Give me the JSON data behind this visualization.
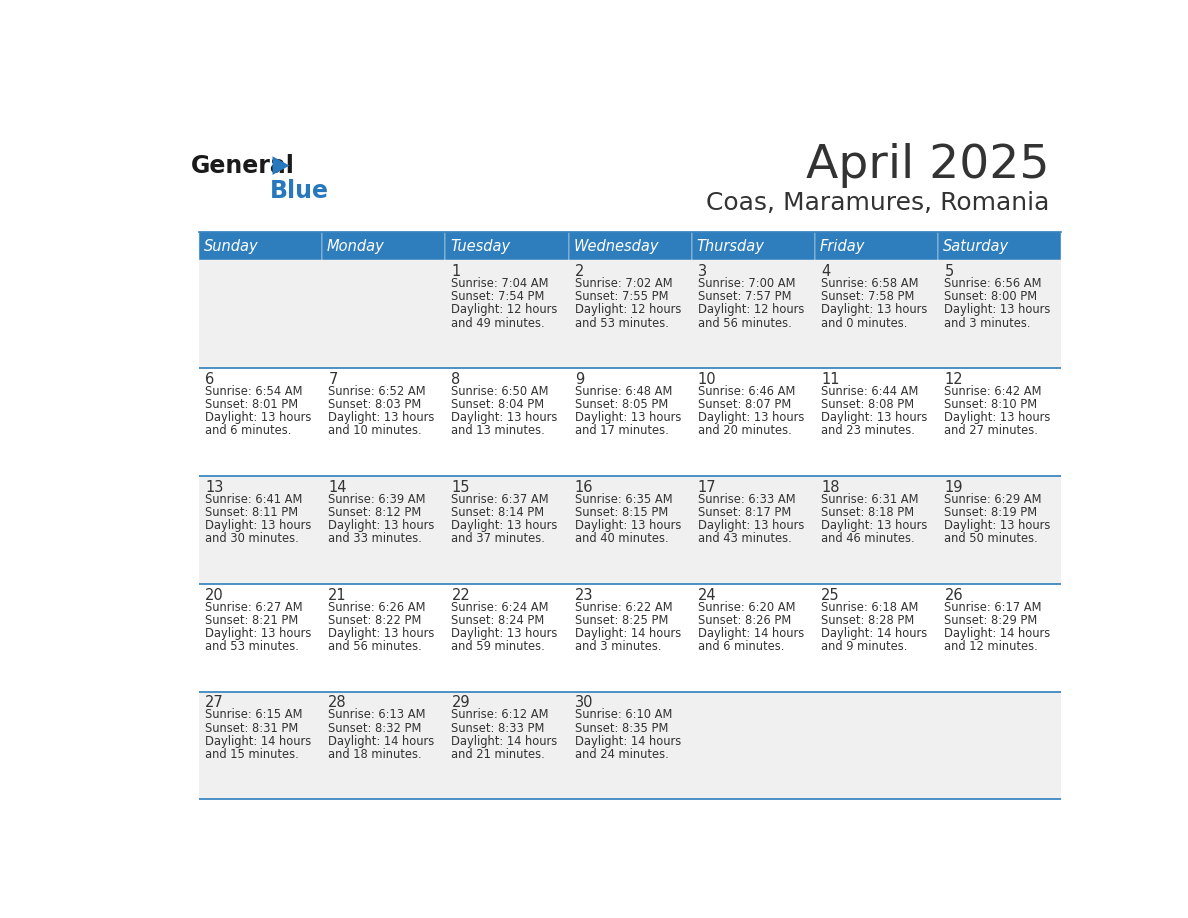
{
  "title": "April 2025",
  "subtitle": "Coas, Maramures, Romania",
  "days_of_week": [
    "Sunday",
    "Monday",
    "Tuesday",
    "Wednesday",
    "Thursday",
    "Friday",
    "Saturday"
  ],
  "header_bg": "#2E7EBD",
  "header_text": "#FFFFFF",
  "row_bg_even": "#F0F0F0",
  "row_bg_odd": "#FFFFFF",
  "row_divider": "#2E7EBD",
  "text_color": "#333333",
  "logo_general_color": "#1a1a1a",
  "logo_blue_color": "#2878BE",
  "cal_data": [
    [
      "",
      "",
      "1",
      "2",
      "3",
      "4",
      "5"
    ],
    [
      "6",
      "7",
      "8",
      "9",
      "10",
      "11",
      "12"
    ],
    [
      "13",
      "14",
      "15",
      "16",
      "17",
      "18",
      "19"
    ],
    [
      "20",
      "21",
      "22",
      "23",
      "24",
      "25",
      "26"
    ],
    [
      "27",
      "28",
      "29",
      "30",
      "",
      "",
      ""
    ]
  ],
  "sunrise_data": [
    [
      "",
      "",
      "7:04 AM",
      "7:02 AM",
      "7:00 AM",
      "6:58 AM",
      "6:56 AM"
    ],
    [
      "6:54 AM",
      "6:52 AM",
      "6:50 AM",
      "6:48 AM",
      "6:46 AM",
      "6:44 AM",
      "6:42 AM"
    ],
    [
      "6:41 AM",
      "6:39 AM",
      "6:37 AM",
      "6:35 AM",
      "6:33 AM",
      "6:31 AM",
      "6:29 AM"
    ],
    [
      "6:27 AM",
      "6:26 AM",
      "6:24 AM",
      "6:22 AM",
      "6:20 AM",
      "6:18 AM",
      "6:17 AM"
    ],
    [
      "6:15 AM",
      "6:13 AM",
      "6:12 AM",
      "6:10 AM",
      "",
      "",
      ""
    ]
  ],
  "sunset_data": [
    [
      "",
      "",
      "7:54 PM",
      "7:55 PM",
      "7:57 PM",
      "7:58 PM",
      "8:00 PM"
    ],
    [
      "8:01 PM",
      "8:03 PM",
      "8:04 PM",
      "8:05 PM",
      "8:07 PM",
      "8:08 PM",
      "8:10 PM"
    ],
    [
      "8:11 PM",
      "8:12 PM",
      "8:14 PM",
      "8:15 PM",
      "8:17 PM",
      "8:18 PM",
      "8:19 PM"
    ],
    [
      "8:21 PM",
      "8:22 PM",
      "8:24 PM",
      "8:25 PM",
      "8:26 PM",
      "8:28 PM",
      "8:29 PM"
    ],
    [
      "8:31 PM",
      "8:32 PM",
      "8:33 PM",
      "8:35 PM",
      "",
      "",
      ""
    ]
  ],
  "daylight_data": [
    [
      "",
      "",
      "12 hours and 49 minutes.",
      "12 hours and 53 minutes.",
      "12 hours and 56 minutes.",
      "13 hours and 0 minutes.",
      "13 hours and 3 minutes."
    ],
    [
      "13 hours and 6 minutes.",
      "13 hours and 10 minutes.",
      "13 hours and 13 minutes.",
      "13 hours and 17 minutes.",
      "13 hours and 20 minutes.",
      "13 hours and 23 minutes.",
      "13 hours and 27 minutes."
    ],
    [
      "13 hours and 30 minutes.",
      "13 hours and 33 minutes.",
      "13 hours and 37 minutes.",
      "13 hours and 40 minutes.",
      "13 hours and 43 minutes.",
      "13 hours and 46 minutes.",
      "13 hours and 50 minutes."
    ],
    [
      "13 hours and 53 minutes.",
      "13 hours and 56 minutes.",
      "13 hours and 59 minutes.",
      "14 hours and 3 minutes.",
      "14 hours and 6 minutes.",
      "14 hours and 9 minutes.",
      "14 hours and 12 minutes."
    ],
    [
      "14 hours and 15 minutes.",
      "14 hours and 18 minutes.",
      "14 hours and 21 minutes.",
      "14 hours and 24 minutes.",
      "",
      "",
      ""
    ]
  ],
  "fig_width": 11.88,
  "fig_height": 9.18
}
